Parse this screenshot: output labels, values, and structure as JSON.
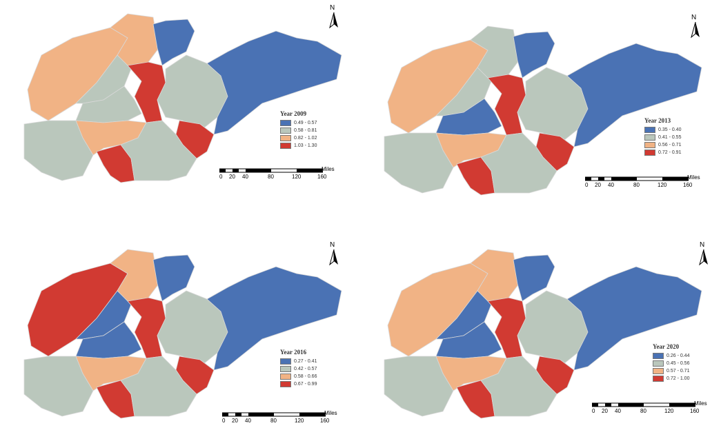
{
  "maps": [
    {
      "legend_title": "Year 2009",
      "classes": [
        {
          "label": "0.49 - 0.57",
          "color": "#4a72b4"
        },
        {
          "label": "0.58 - 0.81",
          "color": "#bac7bc"
        },
        {
          "label": "0.82 - 1.02",
          "color": "#f1b385"
        },
        {
          "label": "1.03 - 1.30",
          "color": "#d13a32"
        }
      ]
    },
    {
      "legend_title": "Year 2013",
      "classes": [
        {
          "label": "0.35 - 0.40",
          "color": "#4a72b4"
        },
        {
          "label": "0.41 - 0.55",
          "color": "#bac7bc"
        },
        {
          "label": "0.56 - 0.71",
          "color": "#f1b385"
        },
        {
          "label": "0.72 - 0.91",
          "color": "#d13a32"
        }
      ]
    },
    {
      "legend_title": "Year 2016",
      "classes": [
        {
          "label": "0.27 - 0.41",
          "color": "#4a72b4"
        },
        {
          "label": "0.42 - 0.57",
          "color": "#bac7bc"
        },
        {
          "label": "0.58 - 0.66",
          "color": "#f1b385"
        },
        {
          "label": "0.67 - 0.99",
          "color": "#d13a32"
        }
      ]
    },
    {
      "legend_title": "Year 2020",
      "classes": [
        {
          "label": "0.26 - 0.44",
          "color": "#4a72b4"
        },
        {
          "label": "0.45 - 0.56",
          "color": "#bac7bc"
        },
        {
          "label": "0.57 - 0.71",
          "color": "#f1b385"
        },
        {
          "label": "0.72 - 1.00",
          "color": "#d13a32"
        }
      ]
    }
  ],
  "north_label": "N",
  "scale_unit": "Miles",
  "scale_ticks": [
    "0",
    "20",
    "40",
    "80",
    "120",
    "160"
  ],
  "region_classes": [
    {
      "west": 2,
      "nw": 2,
      "north_center": 1,
      "north": 0,
      "center_west": 1,
      "center_red": 3,
      "center_east": 1,
      "east": 0,
      "southwest": 1,
      "south_center": 2,
      "south_red": 3,
      "southeast_red": 3,
      "south_east": 1
    },
    {
      "west": 2,
      "nw": 1,
      "north_center": 1,
      "north": 0,
      "center_west": 0,
      "center_red": 3,
      "center_east": 1,
      "east": 0,
      "southwest": 1,
      "south_center": 2,
      "south_red": 3,
      "southeast_red": 3,
      "south_east": 1
    },
    {
      "west": 3,
      "nw": 2,
      "north_center": 0,
      "north": 0,
      "center_west": 0,
      "center_red": 3,
      "center_east": 1,
      "east": 0,
      "southwest": 1,
      "south_center": 2,
      "south_red": 3,
      "southeast_red": 3,
      "south_east": 1
    },
    {
      "west": 2,
      "nw": 2,
      "north_center": 0,
      "north": 0,
      "center_west": 0,
      "center_red": 3,
      "center_east": 1,
      "east": 0,
      "southwest": 1,
      "south_center": 2,
      "south_red": 3,
      "southeast_red": 3,
      "south_east": 1
    }
  ]
}
